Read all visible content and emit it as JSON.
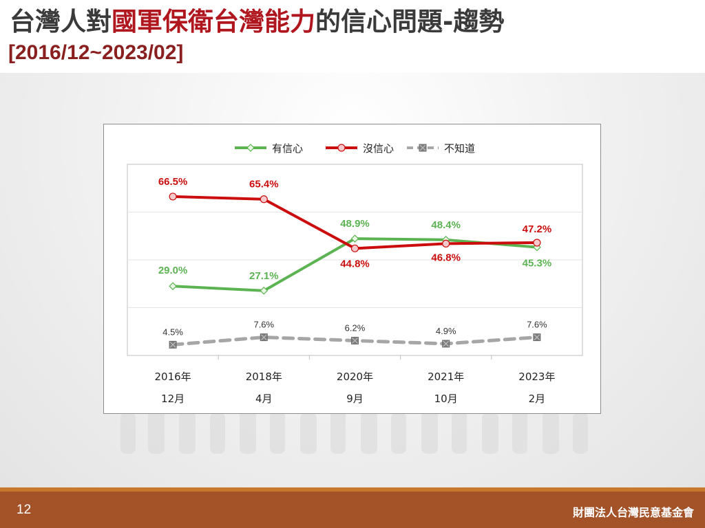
{
  "slide": {
    "title_prefix": "台灣人對",
    "title_highlight": "國軍保衛台灣能力",
    "title_suffix": "的信心問題-趨勢",
    "subtitle": "[2016/12~2023/02]",
    "page_number": "12",
    "organization": "財團法人台灣民意基金會"
  },
  "chart_data": {
    "type": "line",
    "categories": [
      "2016年 12月",
      "2018年 4月",
      "2020年 9月",
      "2021年 10月",
      "2023年 2月"
    ],
    "category_lines": [
      [
        "2016年",
        "12月"
      ],
      [
        "2018年",
        "4月"
      ],
      [
        "2020年",
        "9月"
      ],
      [
        "2021年",
        "10月"
      ],
      [
        "2023年",
        "2月"
      ]
    ],
    "ylim": [
      0,
      80
    ],
    "grid": true,
    "legend_position": "top",
    "series": [
      {
        "name": "有信心",
        "values": [
          29.0,
          27.1,
          48.9,
          48.4,
          45.3
        ],
        "labels": [
          "29.0%",
          "27.1%",
          "48.9%",
          "48.4%",
          "45.3%"
        ],
        "color": "#5cb352",
        "marker": "diamond",
        "dash": false
      },
      {
        "name": "沒信心",
        "values": [
          66.5,
          65.4,
          44.8,
          46.8,
          47.2
        ],
        "labels": [
          "66.5%",
          "65.4%",
          "44.8%",
          "46.8%",
          "47.2%"
        ],
        "color": "#cc0d0d",
        "marker": "circle",
        "dash": false
      },
      {
        "name": "不知道",
        "values": [
          4.5,
          7.6,
          6.2,
          4.9,
          7.6
        ],
        "labels": [
          "4.5%",
          "7.6%",
          "6.2%",
          "4.9%",
          "7.6%"
        ],
        "color": "#a6a6a6",
        "marker": "square-x",
        "dash": true
      }
    ]
  }
}
